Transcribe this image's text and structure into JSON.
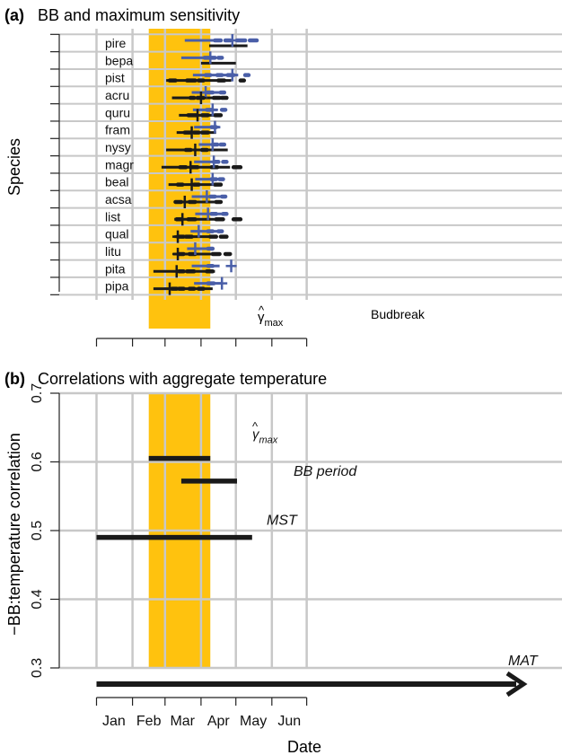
{
  "figure": {
    "x_axis_title": "Date",
    "months": [
      "Jan",
      "Feb",
      "Mar",
      "Apr",
      "May",
      "Jun"
    ]
  },
  "colors": {
    "window": "#FFC20E",
    "black": "#1a1a1a",
    "blue": "#4a5fa8",
    "grid": "#c8c8c8"
  },
  "chart_data": [
    {
      "panel": "a",
      "panel_label": "(a)",
      "title": "BB and maximum sensitivity",
      "type": "interval",
      "ylabel": "Species",
      "species": [
        "pire",
        "bepa",
        "pist",
        "acru",
        "quru",
        "fram",
        "nysy",
        "magr",
        "beal",
        "acsa",
        "list",
        "qual",
        "litu",
        "pita",
        "pipa"
      ],
      "max_sensitivity_window": {
        "label": "γ̂max",
        "label_base": "γ",
        "label_sub": "max",
        "start": "Feb 15",
        "end": "Apr 9"
      },
      "budbreak_label": "Budbreak",
      "series": {
        "black_lines": [
          {
            "y": 0,
            "start": 97,
            "end": 130
          },
          {
            "y": 1,
            "start": 90,
            "end": 120
          },
          {
            "y": 2,
            "start": 60,
            "end": 116
          },
          {
            "y": 3,
            "start": 65,
            "end": 107
          },
          {
            "y": 4,
            "start": 71,
            "end": 104
          },
          {
            "y": 5,
            "start": 69,
            "end": 103
          },
          {
            "y": 6,
            "start": 60,
            "end": 113
          },
          {
            "y": 7,
            "start": 56,
            "end": 115
          },
          {
            "y": 8,
            "start": 62,
            "end": 106
          },
          {
            "y": 9,
            "start": 67,
            "end": 108
          },
          {
            "y": 10,
            "start": 67,
            "end": 108
          },
          {
            "y": 11,
            "start": 67,
            "end": 104
          },
          {
            "y": 12,
            "start": 66,
            "end": 103
          },
          {
            "y": 13,
            "start": 49,
            "end": 102
          },
          {
            "y": 14,
            "start": 49,
            "end": 100
          }
        ],
        "black_dashes": [
          {
            "y": 2,
            "start": 63,
            "end": 68
          },
          {
            "y": 2,
            "start": 78,
            "end": 85
          },
          {
            "y": 2,
            "start": 88,
            "end": 92
          },
          {
            "y": 2,
            "start": 105,
            "end": 110
          },
          {
            "y": 2,
            "start": 124,
            "end": 127
          },
          {
            "y": 3,
            "start": 81,
            "end": 84
          },
          {
            "y": 3,
            "start": 87,
            "end": 92
          },
          {
            "y": 3,
            "start": 101,
            "end": 106
          },
          {
            "y": 3,
            "start": 108,
            "end": 112
          },
          {
            "y": 4,
            "start": 79,
            "end": 86
          },
          {
            "y": 4,
            "start": 91,
            "end": 96
          },
          {
            "y": 4,
            "start": 102,
            "end": 107
          },
          {
            "y": 5,
            "start": 76,
            "end": 81
          },
          {
            "y": 5,
            "start": 84,
            "end": 88
          },
          {
            "y": 5,
            "start": 91,
            "end": 96
          },
          {
            "y": 6,
            "start": 77,
            "end": 81
          },
          {
            "y": 6,
            "start": 91,
            "end": 95
          },
          {
            "y": 7,
            "start": 72,
            "end": 77
          },
          {
            "y": 7,
            "start": 81,
            "end": 87
          },
          {
            "y": 7,
            "start": 99,
            "end": 104
          },
          {
            "y": 7,
            "start": 118,
            "end": 124
          },
          {
            "y": 8,
            "start": 70,
            "end": 74
          },
          {
            "y": 8,
            "start": 84,
            "end": 88
          },
          {
            "y": 8,
            "start": 102,
            "end": 107
          },
          {
            "y": 9,
            "start": 68,
            "end": 73
          },
          {
            "y": 9,
            "start": 80,
            "end": 85
          },
          {
            "y": 9,
            "start": 103,
            "end": 107
          },
          {
            "y": 10,
            "start": 69,
            "end": 73
          },
          {
            "y": 10,
            "start": 79,
            "end": 85
          },
          {
            "y": 10,
            "start": 103,
            "end": 109
          },
          {
            "y": 10,
            "start": 118,
            "end": 124
          },
          {
            "y": 11,
            "start": 70,
            "end": 75
          },
          {
            "y": 11,
            "start": 77,
            "end": 82
          },
          {
            "y": 11,
            "start": 98,
            "end": 103
          },
          {
            "y": 11,
            "start": 107,
            "end": 112
          },
          {
            "y": 12,
            "start": 71,
            "end": 75
          },
          {
            "y": 12,
            "start": 80,
            "end": 85
          },
          {
            "y": 12,
            "start": 100,
            "end": 106
          },
          {
            "y": 12,
            "start": 111,
            "end": 115
          },
          {
            "y": 13,
            "start": 71,
            "end": 75
          },
          {
            "y": 13,
            "start": 78,
            "end": 84
          },
          {
            "y": 13,
            "start": 95,
            "end": 100
          },
          {
            "y": 14,
            "start": 65,
            "end": 69
          },
          {
            "y": 14,
            "start": 71,
            "end": 75
          },
          {
            "y": 14,
            "start": 80,
            "end": 84
          },
          {
            "y": 14,
            "start": 88,
            "end": 92
          }
        ],
        "black_crosses": [
          {
            "y": 3,
            "x": 90
          },
          {
            "y": 4,
            "x": 87
          },
          {
            "y": 5,
            "x": 82
          },
          {
            "y": 6,
            "x": 85
          },
          {
            "y": 7,
            "x": 81
          },
          {
            "y": 8,
            "x": 82
          },
          {
            "y": 9,
            "x": 76
          },
          {
            "y": 10,
            "x": 74
          },
          {
            "y": 11,
            "x": 70
          },
          {
            "y": 12,
            "x": 70
          },
          {
            "y": 13,
            "x": 69
          },
          {
            "y": 14,
            "x": 63
          }
        ],
        "blue_lines": [
          {
            "y": 0,
            "start": 76,
            "end": 103
          },
          {
            "y": 1,
            "start": 73,
            "end": 97
          },
          {
            "y": 2,
            "start": 83,
            "end": 122
          },
          {
            "y": 3,
            "start": 82,
            "end": 108
          },
          {
            "y": 4,
            "start": 83,
            "end": 104
          },
          {
            "y": 5,
            "start": 84,
            "end": 106
          },
          {
            "y": 6,
            "start": 88,
            "end": 104
          },
          {
            "y": 7,
            "start": 84,
            "end": 106
          },
          {
            "y": 8,
            "start": 85,
            "end": 110
          },
          {
            "y": 9,
            "start": 82,
            "end": 109
          },
          {
            "y": 10,
            "start": 85,
            "end": 110
          },
          {
            "y": 11,
            "start": 81,
            "end": 105
          },
          {
            "y": 12,
            "start": 78,
            "end": 100
          },
          {
            "y": 13,
            "start": 82,
            "end": 106
          },
          {
            "y": 14,
            "start": 84,
            "end": 108
          }
        ],
        "blue_dashes": [
          {
            "y": 0,
            "start": 102,
            "end": 107
          },
          {
            "y": 0,
            "start": 111,
            "end": 115
          },
          {
            "y": 0,
            "start": 121,
            "end": 128
          },
          {
            "y": 0,
            "start": 132,
            "end": 138
          },
          {
            "y": 1,
            "start": 93,
            "end": 97
          },
          {
            "y": 1,
            "start": 99,
            "end": 102
          },
          {
            "y": 1,
            "start": 105,
            "end": 108
          },
          {
            "y": 2,
            "start": 94,
            "end": 98
          },
          {
            "y": 2,
            "start": 104,
            "end": 108
          },
          {
            "y": 2,
            "start": 113,
            "end": 118
          },
          {
            "y": 2,
            "start": 128,
            "end": 131
          },
          {
            "y": 3,
            "start": 96,
            "end": 100
          },
          {
            "y": 3,
            "start": 107,
            "end": 110
          },
          {
            "y": 4,
            "start": 95,
            "end": 99
          },
          {
            "y": 4,
            "start": 108,
            "end": 111
          },
          {
            "y": 5,
            "start": 99,
            "end": 103
          },
          {
            "y": 6,
            "start": 100,
            "end": 104
          },
          {
            "y": 6,
            "start": 107,
            "end": 110
          },
          {
            "y": 7,
            "start": 101,
            "end": 105
          },
          {
            "y": 7,
            "start": 109,
            "end": 112
          },
          {
            "y": 8,
            "start": 99,
            "end": 103
          },
          {
            "y": 8,
            "start": 106,
            "end": 109
          },
          {
            "y": 9,
            "start": 98,
            "end": 102
          },
          {
            "y": 9,
            "start": 108,
            "end": 111
          },
          {
            "y": 10,
            "start": 99,
            "end": 103
          },
          {
            "y": 10,
            "start": 109,
            "end": 112
          },
          {
            "y": 11,
            "start": 96,
            "end": 100
          },
          {
            "y": 11,
            "start": 105,
            "end": 108
          },
          {
            "y": 12,
            "start": 96,
            "end": 100
          },
          {
            "y": 13,
            "start": 96,
            "end": 100
          },
          {
            "y": 14,
            "start": 96,
            "end": 101
          }
        ],
        "blue_crosses": [
          {
            "y": 0,
            "x": 117
          },
          {
            "y": 1,
            "x": 98
          },
          {
            "y": 2,
            "x": 117
          },
          {
            "y": 3,
            "x": 94
          },
          {
            "y": 4,
            "x": 100
          },
          {
            "y": 5,
            "x": 102
          },
          {
            "y": 6,
            "x": 100
          },
          {
            "y": 7,
            "x": 101
          },
          {
            "y": 8,
            "x": 100
          },
          {
            "y": 9,
            "x": 95
          },
          {
            "y": 10,
            "x": 96
          },
          {
            "y": 11,
            "x": 88
          },
          {
            "y": 12,
            "x": 85
          },
          {
            "y": 13,
            "x": 116
          },
          {
            "y": 14,
            "x": 108
          }
        ]
      }
    },
    {
      "panel": "b",
      "panel_label": "(b)",
      "title": "Correlations with aggregate temperature",
      "type": "interval",
      "ylabel": "−BB:temperature correlation",
      "ylim": [
        0.3,
        0.7
      ],
      "yticks": [
        0.3,
        0.4,
        0.5,
        0.6,
        0.7
      ],
      "ytick_labels": [
        "0.3",
        "0.4",
        "0.5",
        "0.6",
        "0.7"
      ],
      "max_sensitivity_window": {
        "start": "Feb 15",
        "end": "Apr 9"
      },
      "intervals": [
        {
          "label": "γ̂max",
          "label_base": "γ",
          "label_sub": "max",
          "start": "Feb 15",
          "end": "Apr 9",
          "value": 0.605
        },
        {
          "label": "BB period",
          "start": "Mar 15",
          "end": "May 2",
          "value": 0.572
        },
        {
          "label": "MST",
          "start": "Jan 1",
          "end": "May 15",
          "value": 0.49
        }
      ],
      "mat": {
        "label": "MAT",
        "value": "below 0.3",
        "start": "Jan 1",
        "end": "annual (arrow beyond Jun)"
      }
    }
  ]
}
